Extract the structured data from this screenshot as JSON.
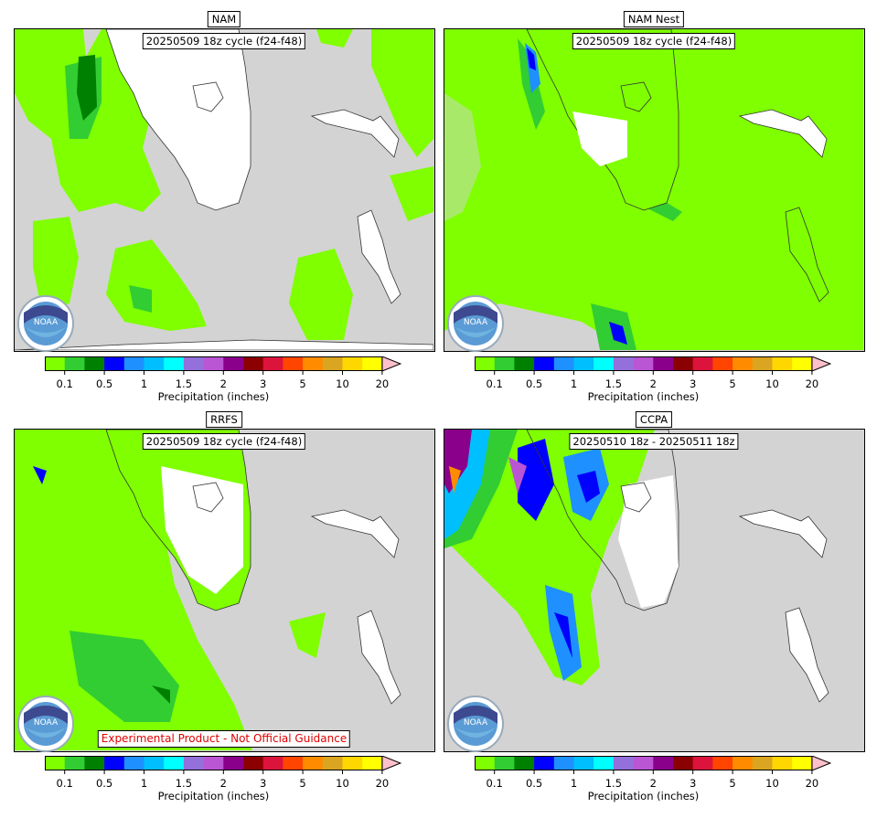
{
  "panels": [
    {
      "id": "nam",
      "title": "NAM",
      "cycle": "20250509 18z cycle (f24-f48)",
      "warning": ""
    },
    {
      "id": "namnest",
      "title": "NAM Nest",
      "cycle": "20250509 18z cycle (f24-f48)",
      "warning": ""
    },
    {
      "id": "rrfs",
      "title": "RRFS",
      "cycle": "20250509 18z cycle (f24-f48)",
      "warning": "Experimental Product - Not Official Guidance"
    },
    {
      "id": "ccpa",
      "title": "CCPA",
      "cycle": "20250510 18z - 20250511 18z",
      "warning": ""
    }
  ],
  "colorbar": {
    "label": "Precipitation (inches)",
    "tick_labels": [
      "0.1",
      "0.5",
      "1",
      "1.5",
      "2",
      "3",
      "5",
      "10",
      "20"
    ],
    "colors": [
      "#7fff00",
      "#32cd32",
      "#008000",
      "#0000ff",
      "#1e90ff",
      "#00bfff",
      "#00ffff",
      "#9370db",
      "#ba55d3",
      "#8b008b",
      "#8b0000",
      "#dc143c",
      "#ff4500",
      "#ff8c00",
      "#daa520",
      "#ffd700",
      "#ffff00",
      "#ffc0cb"
    ]
  },
  "logo": {
    "text": "NOAA",
    "icon": "noaa-logo-icon"
  }
}
